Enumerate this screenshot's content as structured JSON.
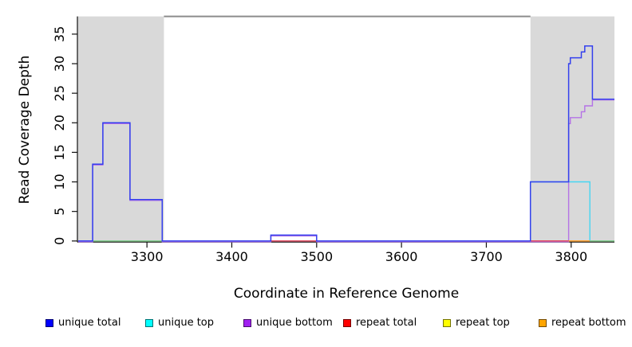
{
  "chart_data": {
    "type": "line",
    "subtype": "step-coverage-plot",
    "title": "",
    "xlabel": "Coordinate in Reference Genome",
    "ylabel": "Read Coverage Depth",
    "xlim": [
      3218.5,
      3851
    ],
    "ylim": [
      0,
      38.2
    ],
    "x_ticks": [
      3300,
      3400,
      3500,
      3600,
      3700,
      3800
    ],
    "y_ticks": [
      0,
      5,
      10,
      15,
      20,
      25,
      30,
      35
    ],
    "grid": "off",
    "legend_position": "bottom",
    "shaded_regions": [
      {
        "name": "shaded-region-left",
        "x_start": 3218.5,
        "x_end": 3320,
        "color": "#d9d9d9"
      },
      {
        "name": "shaded-region-right",
        "x_start": 3752,
        "x_end": 3851,
        "color": "#d9d9d9"
      }
    ],
    "marker_line": {
      "name": "top-marker-line",
      "x_start": 3320,
      "x_end": 3752,
      "y": 38,
      "color": "#8c8c8c"
    },
    "series": [
      {
        "name": "unique total",
        "color": "#0000ff",
        "render_color": "#3440ee",
        "steps": [
          [
            3219,
            0
          ],
          [
            3236,
            13
          ],
          [
            3248,
            20
          ],
          [
            3280,
            7
          ],
          [
            3318,
            0
          ],
          [
            3446,
            1
          ],
          [
            3500,
            0
          ],
          [
            3752,
            10
          ],
          [
            3797,
            30
          ],
          [
            3799,
            31
          ],
          [
            3812,
            32
          ],
          [
            3816,
            33
          ],
          [
            3825,
            24
          ],
          [
            3851,
            24
          ]
        ]
      },
      {
        "name": "unique top",
        "color": "#00ffff",
        "render_color": "#45d6f2",
        "steps": [
          [
            3219,
            0
          ],
          [
            3752,
            10
          ],
          [
            3822,
            0
          ],
          [
            3851,
            0
          ]
        ]
      },
      {
        "name": "unique bottom",
        "color": "#a020f0",
        "render_color": "#b473e6",
        "steps": [
          [
            3219,
            0
          ],
          [
            3236,
            13
          ],
          [
            3248,
            20
          ],
          [
            3280,
            7
          ],
          [
            3318,
            0
          ],
          [
            3446,
            1
          ],
          [
            3500,
            0
          ],
          [
            3797,
            20
          ],
          [
            3799,
            21
          ],
          [
            3812,
            22
          ],
          [
            3816,
            23
          ],
          [
            3825,
            24
          ],
          [
            3851,
            24
          ]
        ]
      },
      {
        "name": "repeat total",
        "color": "#ff0000",
        "render_color": "#e0475f",
        "steps": [
          [
            3219,
            0
          ],
          [
            3851,
            0
          ]
        ],
        "visible_zero_segments": [
          [
            3446,
            3500
          ],
          [
            3752,
            3797
          ]
        ]
      },
      {
        "name": "repeat top",
        "color": "#ffff00",
        "render_color": "#f0e030",
        "steps": [
          [
            3219,
            0
          ],
          [
            3851,
            0
          ]
        ],
        "visible_zero_segments": []
      },
      {
        "name": "repeat bottom",
        "color": "#ffa500",
        "render_color": "#ff9d26",
        "steps": [
          [
            3219,
            0
          ],
          [
            3851,
            0
          ]
        ],
        "visible_zero_segments": [
          [
            3797,
            3822
          ]
        ]
      }
    ],
    "zero_line_highlight": {
      "name": "zero-line-green-segments",
      "color": "#82cc82",
      "segments": [
        [
          3236,
          3318
        ],
        [
          3822,
          3851
        ]
      ]
    }
  },
  "legend": {
    "items": [
      {
        "label": "unique total",
        "color": "#0000ff"
      },
      {
        "label": "unique top",
        "color": "#00ffff"
      },
      {
        "label": "unique bottom",
        "color": "#a020f0"
      },
      {
        "label": "repeat total",
        "color": "#ff0000"
      },
      {
        "label": "repeat top",
        "color": "#ffff00"
      },
      {
        "label": "repeat bottom",
        "color": "#ffa500"
      }
    ]
  }
}
